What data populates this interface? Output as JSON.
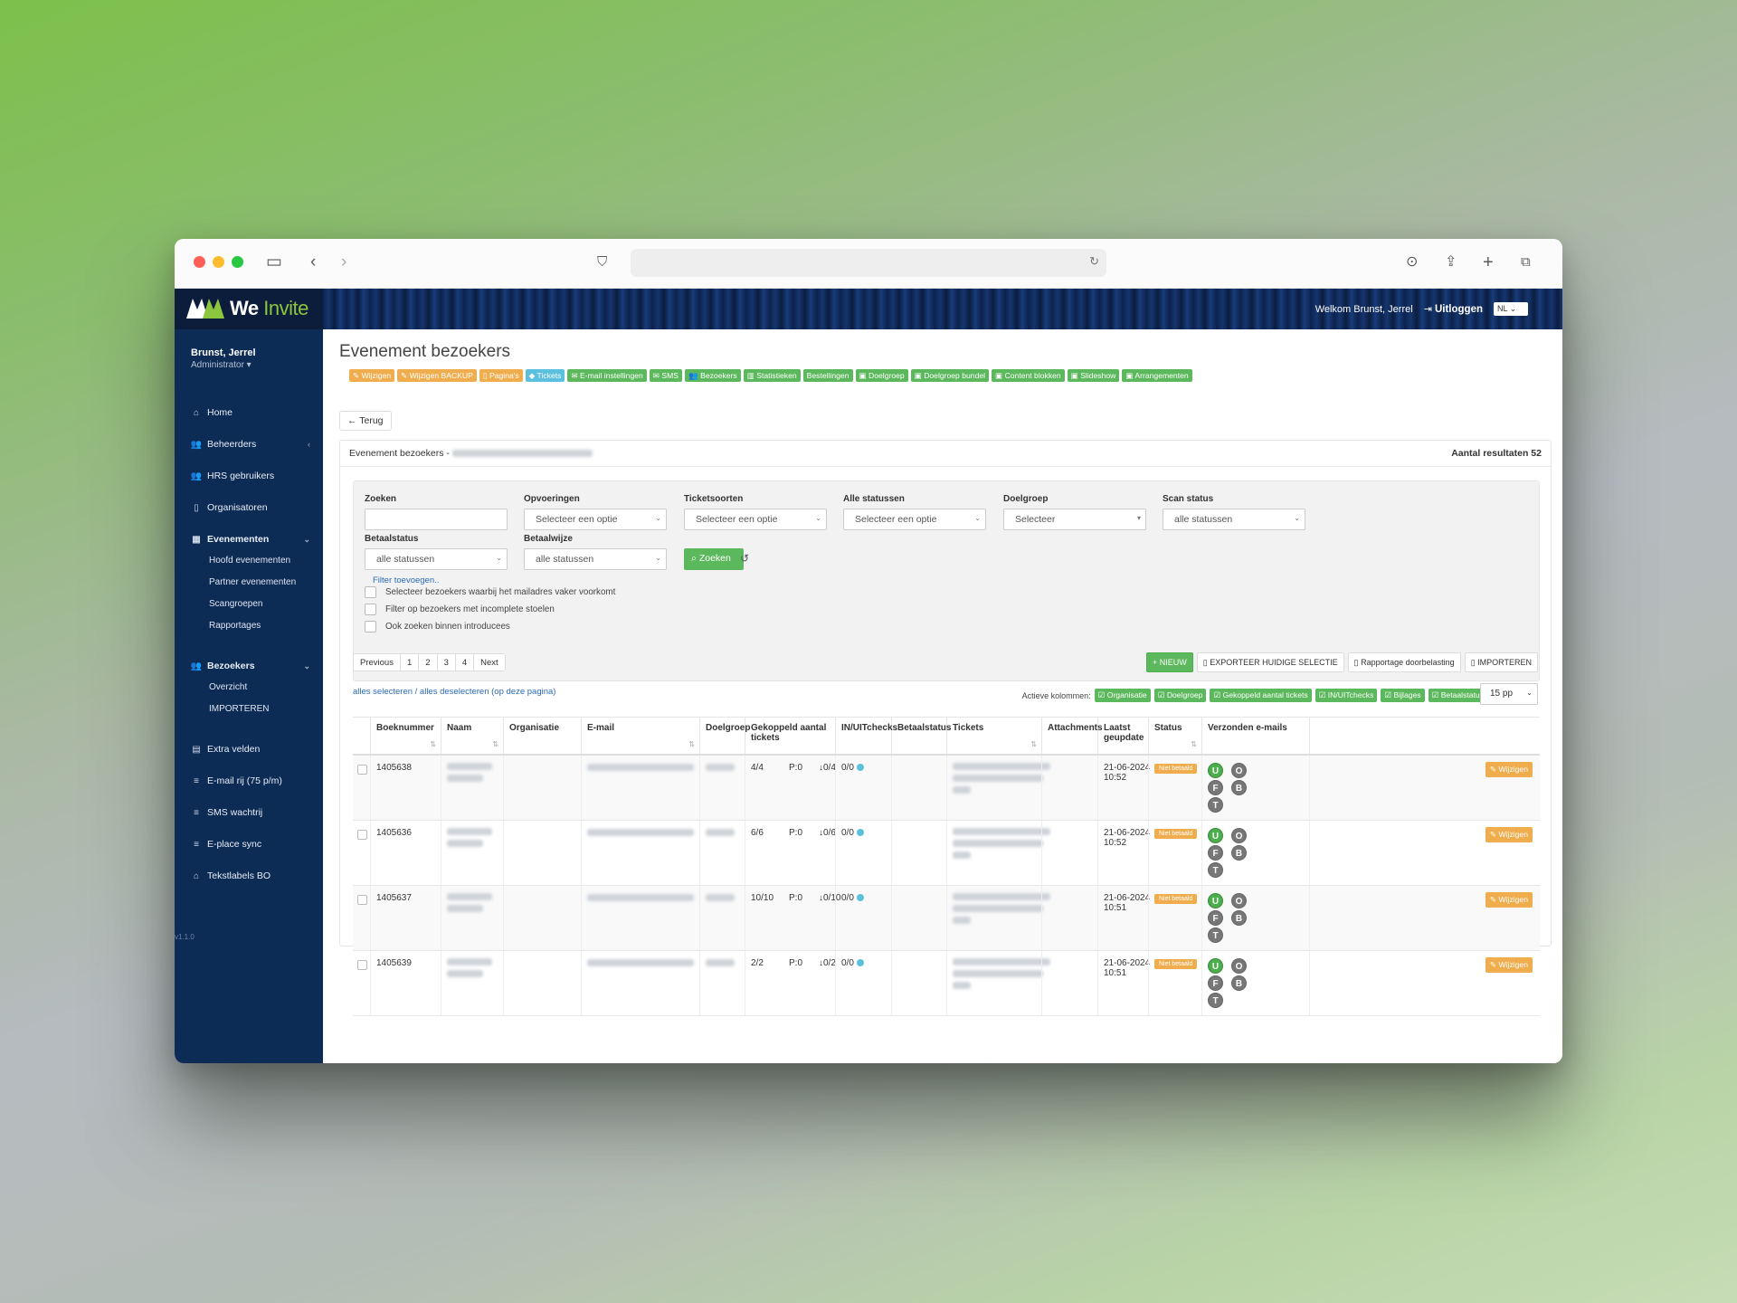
{
  "header": {
    "brand_a": "We",
    "brand_b": "Invite",
    "welcome": "Welkom Brunst, Jerrel",
    "logout": "Uitloggen",
    "lang": "NL"
  },
  "user": {
    "name": "Brunst, Jerrel",
    "role": "Administrator"
  },
  "nav": {
    "home": "Home",
    "beheerders": "Beheerders",
    "hrs": "HRS gebruikers",
    "organisatoren": "Organisatoren",
    "evenementen": "Evenementen",
    "hoofd": "Hoofd evenementen",
    "partner": "Partner evenementen",
    "scangroepen": "Scangroepen",
    "rapportages": "Rapportages",
    "bezoekers": "Bezoekers",
    "overzicht": "Overzicht",
    "importeren": "IMPORTEREN",
    "extra": "Extra velden",
    "emailrij": "E-mail rij (75 p/m)",
    "sms": "SMS wachtrij",
    "eplace": "E-place sync",
    "tekstlabels": "Tekstlabels BO",
    "version": "v1.1.0"
  },
  "page": {
    "title": "Evenement bezoekers",
    "back": "Terug",
    "panel_title": "Evenement bezoekers -",
    "results": "Aantal resultaten 52"
  },
  "toolbar": [
    "Wijzigen",
    "Wijzigen BACKUP",
    "Pagina's",
    "Tickets",
    "E-mail instellingen",
    "SMS",
    "Bezoekers",
    "Statistieken",
    "Bestellingen",
    "Doelgroep",
    "Doelgroep bundel",
    "Content blokken",
    "Slideshow",
    "Arrangementen"
  ],
  "filters": {
    "zoeken": "Zoeken",
    "opvoeringen": "Opvoeringen",
    "opvoeringen_val": "Selecteer een optie",
    "ticketsoorten": "Ticketsoorten",
    "ticketsoorten_val": "Selecteer een optie",
    "alle_statussen": "Alle statussen",
    "alle_statussen_val": "Selecteer een optie",
    "doelgroep": "Doelgroep",
    "doelgroep_val": "Selecteer",
    "scan": "Scan status",
    "scan_val": "alle statussen",
    "betaalstatus": "Betaalstatus",
    "betaalstatus_val": "alle statussen",
    "betaalwijze": "Betaalwijze",
    "betaalwijze_val": "alle statussen",
    "zoek_btn": "Zoeken",
    "filter_link": "Filter toevoegen..",
    "chk1": "Selecteer bezoekers waarbij het mailadres vaker voorkomt",
    "chk2": "Filter op bezoekers met incomplete stoelen",
    "chk3": "Ook zoeken binnen introducees"
  },
  "pagination": {
    "prev": "Previous",
    "p1": "1",
    "p2": "2",
    "p3": "3",
    "p4": "4",
    "next": "Next"
  },
  "actions": {
    "nieuw": "NIEUW",
    "export": "EXPORTEER HUIDIGE SELECTIE",
    "rapport": "Rapportage doorbelasting",
    "import": "IMPORTEREN"
  },
  "select_links": "alles selecteren / alles deselecteren (op deze pagina)",
  "active_cols_label": "Actieve kolommen:",
  "active_cols": [
    "Organisatie",
    "Doelgroep",
    "Gekoppeld aantal tickets",
    "IN/UITchecks",
    "Bijlages",
    "Betaalstatus"
  ],
  "per_page": "15 pp",
  "columns": [
    "Boeknummer",
    "Naam",
    "Organisatie",
    "E-mail",
    "Doelgroep",
    "Gekoppeld aantal tickets",
    "IN/UITchecks",
    "Betaalstatus",
    "Tickets",
    "Attachments",
    "Laatst geupdate",
    "Status",
    "Verzonden e-mails"
  ],
  "rows": [
    {
      "boek": "1405638",
      "tickets": "4/4",
      "p": "P:0",
      "dl": "0/4",
      "inuit": "0/0",
      "date": "21-06-2024",
      "time": "10:52",
      "status": "Niet betaald",
      "edit": "Wijzigen"
    },
    {
      "boek": "1405636",
      "tickets": "6/6",
      "p": "P:0",
      "dl": "0/6",
      "inuit": "0/0",
      "date": "21-06-2024",
      "time": "10:52",
      "status": "Niet betaald",
      "edit": "Wijzigen"
    },
    {
      "boek": "1405637",
      "tickets": "10/10",
      "p": "P:0",
      "dl": "0/10",
      "inuit": "0/0",
      "date": "21-06-2024",
      "time": "10:51",
      "status": "Niet betaald",
      "edit": "Wijzigen"
    },
    {
      "boek": "1405639",
      "tickets": "2/2",
      "p": "P:0",
      "dl": "0/2",
      "inuit": "0/0",
      "date": "21-06-2024",
      "time": "10:51",
      "status": "Niet betaald",
      "edit": "Wijzigen"
    }
  ],
  "mail_letters": [
    "U",
    "O",
    "F",
    "B",
    "T"
  ]
}
